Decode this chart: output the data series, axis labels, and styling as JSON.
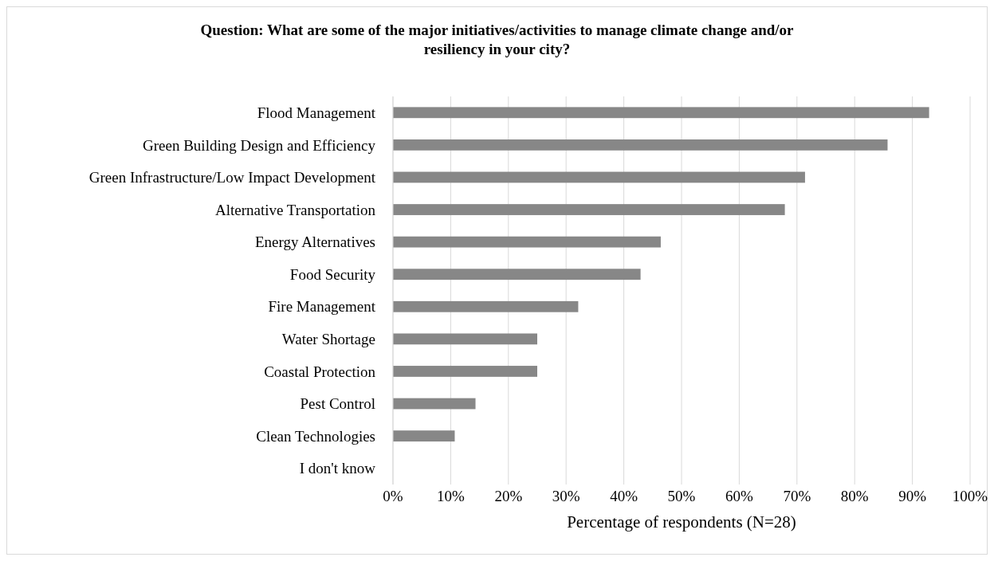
{
  "chart_data": {
    "type": "bar",
    "orientation": "horizontal",
    "title": "Question: What are some of the major initiatives/activities to manage climate change and/or resiliency in your city?",
    "xlabel": "Percentage of respondents (N=28)",
    "categories": [
      "Flood Management",
      "Green Building Design and Efficiency",
      "Green Infrastructure/Low Impact Development",
      "Alternative Transportation",
      "Energy Alternatives",
      "Food Security",
      "Fire Management",
      "Water Shortage",
      "Coastal Protection",
      "Pest Control",
      "Clean Technologies",
      "I don't know"
    ],
    "values": [
      92.9,
      85.7,
      71.4,
      67.9,
      46.4,
      42.9,
      32.1,
      25,
      25,
      14.3,
      10.7,
      0
    ],
    "color": "#878787",
    "xlim": [
      0,
      100
    ],
    "xticks": [
      {
        "value": 0,
        "label": "0%"
      },
      {
        "value": 10,
        "label": "10%"
      },
      {
        "value": 20,
        "label": "20%"
      },
      {
        "value": 30,
        "label": "30%"
      },
      {
        "value": 40,
        "label": "40%"
      },
      {
        "value": 50,
        "label": "50%"
      },
      {
        "value": 60,
        "label": "60%"
      },
      {
        "value": 70,
        "label": "70%"
      },
      {
        "value": 80,
        "label": "80%"
      },
      {
        "value": 90,
        "label": "90%"
      },
      {
        "value": 100,
        "label": "100%"
      }
    ],
    "grid": "x"
  }
}
